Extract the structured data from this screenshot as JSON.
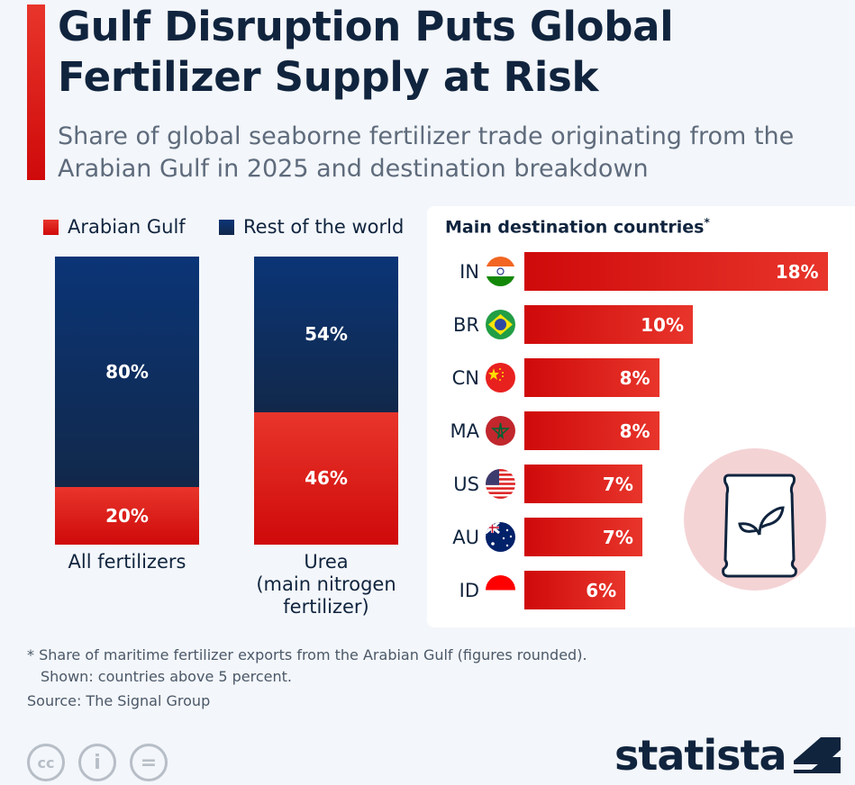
{
  "title": "Gulf Disruption Puts Global Fertilizer Supply at Risk",
  "subtitle": "Share of global seaborne fertilizer trade originating from the Arabian Gulf in 2025 and destination breakdown",
  "chart_data": [
    {
      "type": "bar",
      "stacked": true,
      "categories": [
        "All fertilizers",
        "Urea\n(main nitrogen fertilizer)"
      ],
      "series": [
        {
          "name": "Arabian Gulf",
          "values": [
            20,
            46
          ],
          "labels": [
            "20%",
            "46%"
          ],
          "color": "#e0201a"
        },
        {
          "name": "Rest of the world",
          "values": [
            80,
            54
          ],
          "labels": [
            "80%",
            "54%"
          ],
          "color": "#0d2d5e"
        }
      ],
      "legend": "top",
      "ylim": [
        0,
        100
      ]
    },
    {
      "type": "bar",
      "orientation": "horizontal",
      "title": "Main destination countries",
      "title_mark": "*",
      "categories": [
        "IN",
        "BR",
        "CN",
        "MA",
        "US",
        "AU",
        "ID"
      ],
      "values": [
        18,
        10,
        8,
        8,
        7,
        7,
        6
      ],
      "labels": [
        "18%",
        "10%",
        "8%",
        "8%",
        "7%",
        "7%",
        "6%"
      ],
      "flags": [
        "india",
        "brazil",
        "china",
        "morocco",
        "usa",
        "australia",
        "indonesia"
      ],
      "color": "#e0201a"
    }
  ],
  "footnote": [
    "* Share of maritime fertilizer exports from the Arabian Gulf (figures rounded).",
    "Shown: countries above 5 percent."
  ],
  "source": "Source: The Signal Group",
  "logo": "statista",
  "license_icons": [
    "cc",
    "by",
    "nd"
  ],
  "license_labels": [
    "cc",
    "i",
    "="
  ]
}
